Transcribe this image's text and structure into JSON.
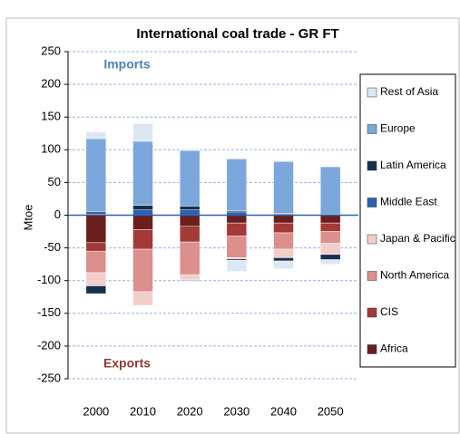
{
  "chart_data": {
    "type": "bar",
    "title": "International coal trade - GR FT",
    "y_label": "Mtoe",
    "annotations": [
      {
        "text": "Imports",
        "color": "#4f81bd"
      },
      {
        "text": "Exports",
        "color": "#943634"
      }
    ],
    "categories": [
      "2000",
      "2010",
      "2020",
      "2030",
      "2040",
      "2050"
    ],
    "ylim": [
      -250,
      250
    ],
    "yticks": [
      250,
      200,
      150,
      100,
      50,
      0,
      -50,
      -100,
      -150,
      -200,
      -250
    ],
    "grid": true,
    "legend": "right",
    "series": [
      {
        "name": "Rest of Asia",
        "color": "#dbe7f5",
        "imports": [
          10,
          27,
          1,
          0,
          0,
          0
        ],
        "exports": [
          0,
          0,
          0,
          -17,
          -12,
          -7
        ]
      },
      {
        "name": "Europe",
        "color": "#7ba7dc",
        "imports": [
          112,
          98,
          85,
          79,
          79,
          73
        ],
        "exports": [
          0,
          0,
          0,
          0,
          0,
          0
        ]
      },
      {
        "name": "Latin America",
        "color": "#17304f",
        "imports": [
          3,
          7,
          6,
          2,
          1,
          0
        ],
        "exports": [
          -12,
          0,
          -1,
          -2,
          -5,
          -8
        ]
      },
      {
        "name": "Middle East",
        "color": "#2b62b0",
        "imports": [
          2,
          8,
          8,
          5,
          2,
          1
        ],
        "exports": [
          0,
          0,
          0,
          0,
          0,
          0
        ]
      },
      {
        "name": "Japan & Pacific",
        "color": "#f3cfcc",
        "imports": [
          0,
          0,
          0,
          0,
          0,
          0
        ],
        "exports": [
          -20,
          -21,
          -8,
          -2,
          -13,
          -17
        ]
      },
      {
        "name": "North America",
        "color": "#dc8f8c",
        "imports": [
          0,
          0,
          0,
          0,
          0,
          0
        ],
        "exports": [
          -33,
          -65,
          -50,
          -33,
          -25,
          -18
        ]
      },
      {
        "name": "CIS",
        "color": "#a33a37",
        "imports": [
          0,
          0,
          0,
          0,
          0,
          0
        ],
        "exports": [
          -13,
          -30,
          -24,
          -20,
          -15,
          -13
        ]
      },
      {
        "name": "Africa",
        "color": "#6b1e1e",
        "imports": [
          0,
          0,
          0,
          0,
          0,
          0
        ],
        "exports": [
          -42,
          -22,
          -17,
          -12,
          -12,
          -12
        ]
      }
    ]
  }
}
